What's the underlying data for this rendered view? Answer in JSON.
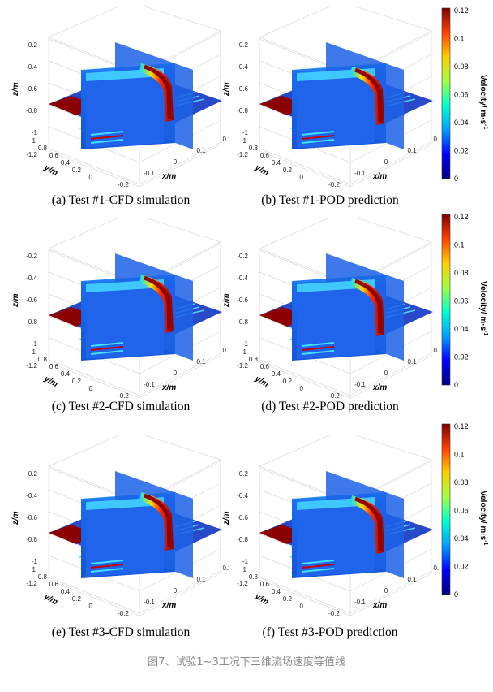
{
  "figure_caption": "图7、试验1~3工况下三维流场速度等值线",
  "axes": {
    "z_label": "z/m",
    "y_label": "y/m",
    "x_label": "x/m",
    "z_ticks": [
      "-0.2",
      "-0.4",
      "-0.6",
      "-0.8",
      "-1",
      "-1.2"
    ],
    "y_ticks": [
      "1",
      "0.8",
      "0.6",
      "0.4",
      "0.2",
      "0"
    ],
    "x_ticks": [
      "-0.2",
      "-0.1",
      "0",
      "0.1",
      "0.2"
    ]
  },
  "colorbar": {
    "label": "Velocity/ m·s",
    "label_sup": "-1",
    "ticks": [
      "0.12",
      "0.1",
      "0.08",
      "0.06",
      "0.04",
      "0.02",
      "0"
    ],
    "colors": [
      "#000080",
      "#0000ff",
      "#00a0ff",
      "#00ffd0",
      "#a0ff40",
      "#ffd000",
      "#ff4000",
      "#800000"
    ]
  },
  "panels": [
    {
      "caption": "(a) Test #1-CFD simulation"
    },
    {
      "caption": "(b) Test #1-POD prediction"
    },
    {
      "caption": "(c) Test #2-CFD simulation"
    },
    {
      "caption": "(d) Test #2-POD prediction"
    },
    {
      "caption": "(e) Test #3-CFD simulation"
    },
    {
      "caption": "(f) Test #3-POD prediction"
    }
  ]
}
